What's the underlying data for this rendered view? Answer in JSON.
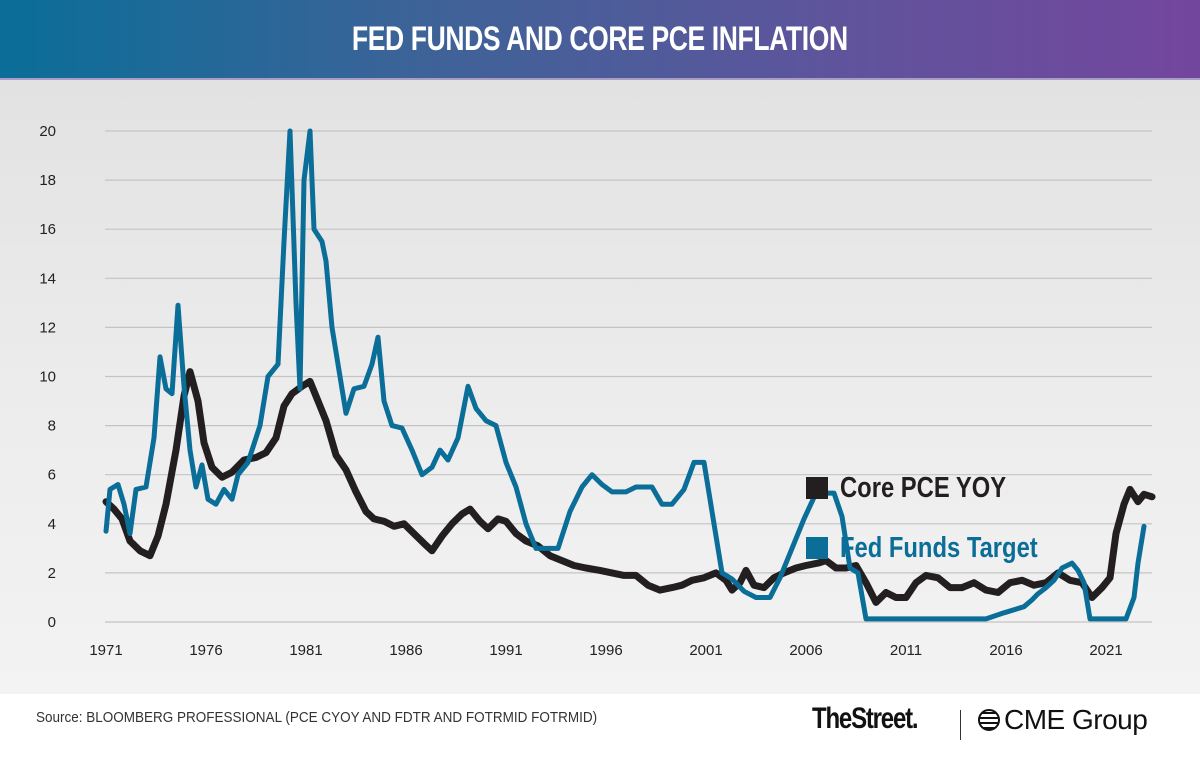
{
  "header": {
    "title": "FED FUNDS AND CORE PCE INFLATION"
  },
  "colors": {
    "core_pce": "#231f20",
    "fed_funds": "#0a6e98",
    "grid": "#c4c4c4"
  },
  "legend": [
    {
      "label": "Core PCE YOY",
      "color": "#231f20"
    },
    {
      "label": "Fed Funds Target",
      "color": "#0a6e98"
    }
  ],
  "footer": {
    "source": "Source: BLOOMBERG PROFESSIONAL (PCE CYOY AND FDTR AND FOTRMID FOTRMID)",
    "logo_thestreet": "TheStreet.",
    "logo_cme": "CME Group"
  },
  "chart_data": {
    "type": "line",
    "title": "FED FUNDS AND CORE PCE INFLATION",
    "xlabel": "",
    "ylabel": "",
    "xlim": [
      1971,
      2023.3
    ],
    "ylim": [
      0,
      20
    ],
    "x_ticks": [
      "1971",
      "1976",
      "1981",
      "1986",
      "1991",
      "1996",
      "2001",
      "2006",
      "2011",
      "2016",
      "2021"
    ],
    "y_ticks": [
      "0",
      "2",
      "4",
      "6",
      "8",
      "10",
      "12",
      "14",
      "16",
      "18",
      "20"
    ],
    "grid": true,
    "legend_position": "center-right",
    "series": [
      {
        "name": "Core PCE YOY",
        "points": [
          [
            1971.0,
            4.9
          ],
          [
            1971.4,
            4.6
          ],
          [
            1971.8,
            4.2
          ],
          [
            1972.2,
            3.3
          ],
          [
            1972.7,
            2.9
          ],
          [
            1973.2,
            2.7
          ],
          [
            1973.6,
            3.5
          ],
          [
            1974.0,
            4.8
          ],
          [
            1974.5,
            7.0
          ],
          [
            1974.9,
            9.2
          ],
          [
            1975.2,
            10.2
          ],
          [
            1975.6,
            9.0
          ],
          [
            1975.9,
            7.3
          ],
          [
            1976.3,
            6.3
          ],
          [
            1976.8,
            5.9
          ],
          [
            1977.3,
            6.1
          ],
          [
            1977.9,
            6.6
          ],
          [
            1978.5,
            6.7
          ],
          [
            1979.0,
            6.9
          ],
          [
            1979.5,
            7.5
          ],
          [
            1979.9,
            8.8
          ],
          [
            1980.3,
            9.3
          ],
          [
            1980.8,
            9.6
          ],
          [
            1981.2,
            9.8
          ],
          [
            1981.6,
            9.0
          ],
          [
            1982.0,
            8.2
          ],
          [
            1982.5,
            6.8
          ],
          [
            1983.0,
            6.2
          ],
          [
            1983.5,
            5.3
          ],
          [
            1984.0,
            4.5
          ],
          [
            1984.4,
            4.2
          ],
          [
            1984.9,
            4.1
          ],
          [
            1985.4,
            3.9
          ],
          [
            1985.9,
            4.0
          ],
          [
            1986.4,
            3.6
          ],
          [
            1986.9,
            3.2
          ],
          [
            1987.3,
            2.9
          ],
          [
            1987.8,
            3.5
          ],
          [
            1988.3,
            4.0
          ],
          [
            1988.8,
            4.4
          ],
          [
            1989.2,
            4.6
          ],
          [
            1989.7,
            4.1
          ],
          [
            1990.1,
            3.8
          ],
          [
            1990.6,
            4.2
          ],
          [
            1991.0,
            4.1
          ],
          [
            1991.5,
            3.6
          ],
          [
            1992.0,
            3.3
          ],
          [
            1992.6,
            3.1
          ],
          [
            1993.2,
            2.7
          ],
          [
            1993.8,
            2.5
          ],
          [
            1994.4,
            2.3
          ],
          [
            1995.0,
            2.2
          ],
          [
            1995.7,
            2.1
          ],
          [
            1996.3,
            2.0
          ],
          [
            1996.9,
            1.9
          ],
          [
            1997.5,
            1.9
          ],
          [
            1998.1,
            1.5
          ],
          [
            1998.7,
            1.3
          ],
          [
            1999.3,
            1.4
          ],
          [
            1999.8,
            1.5
          ],
          [
            2000.3,
            1.7
          ],
          [
            2000.9,
            1.8
          ],
          [
            2001.5,
            2.0
          ],
          [
            2002.0,
            1.7
          ],
          [
            2002.3,
            1.3
          ],
          [
            2002.7,
            1.6
          ],
          [
            2003.0,
            2.1
          ],
          [
            2003.4,
            1.5
          ],
          [
            2003.9,
            1.4
          ],
          [
            2004.4,
            1.8
          ],
          [
            2004.9,
            2.0
          ],
          [
            2005.5,
            2.2
          ],
          [
            2006.0,
            2.3
          ],
          [
            2006.6,
            2.4
          ],
          [
            2007.0,
            2.5
          ],
          [
            2007.5,
            2.2
          ],
          [
            2008.0,
            2.2
          ],
          [
            2008.5,
            2.3
          ],
          [
            2009.0,
            1.6
          ],
          [
            2009.5,
            0.8
          ],
          [
            2010.0,
            1.2
          ],
          [
            2010.5,
            1.0
          ],
          [
            2011.0,
            1.0
          ],
          [
            2011.5,
            1.6
          ],
          [
            2012.0,
            1.9
          ],
          [
            2012.6,
            1.8
          ],
          [
            2013.2,
            1.4
          ],
          [
            2013.8,
            1.4
          ],
          [
            2014.4,
            1.6
          ],
          [
            2015.0,
            1.3
          ],
          [
            2015.6,
            1.2
          ],
          [
            2016.2,
            1.6
          ],
          [
            2016.8,
            1.7
          ],
          [
            2017.4,
            1.5
          ],
          [
            2018.0,
            1.6
          ],
          [
            2018.6,
            2.0
          ],
          [
            2019.2,
            1.7
          ],
          [
            2019.8,
            1.6
          ],
          [
            2020.3,
            1.0
          ],
          [
            2020.8,
            1.4
          ],
          [
            2021.2,
            1.8
          ],
          [
            2021.5,
            3.6
          ],
          [
            2021.9,
            4.8
          ],
          [
            2022.2,
            5.4
          ],
          [
            2022.6,
            4.9
          ],
          [
            2022.9,
            5.2
          ],
          [
            2023.3,
            5.1
          ]
        ]
      },
      {
        "name": "Fed Funds Target",
        "points": [
          [
            1971.0,
            3.7
          ],
          [
            1971.2,
            5.4
          ],
          [
            1971.6,
            5.6
          ],
          [
            1971.9,
            4.8
          ],
          [
            1972.2,
            3.6
          ],
          [
            1972.5,
            5.4
          ],
          [
            1973.0,
            5.5
          ],
          [
            1973.4,
            7.5
          ],
          [
            1973.7,
            10.8
          ],
          [
            1974.0,
            9.5
          ],
          [
            1974.3,
            9.3
          ],
          [
            1974.6,
            12.9
          ],
          [
            1974.9,
            9.6
          ],
          [
            1975.2,
            7.0
          ],
          [
            1975.5,
            5.5
          ],
          [
            1975.8,
            6.4
          ],
          [
            1976.1,
            5.0
          ],
          [
            1976.5,
            4.8
          ],
          [
            1976.9,
            5.4
          ],
          [
            1977.3,
            5.0
          ],
          [
            1977.6,
            6.0
          ],
          [
            1978.1,
            6.5
          ],
          [
            1978.7,
            8.0
          ],
          [
            1979.1,
            10.0
          ],
          [
            1979.6,
            10.5
          ],
          [
            1979.9,
            15.5
          ],
          [
            1980.2,
            20.0
          ],
          [
            1980.5,
            13.0
          ],
          [
            1980.7,
            9.5
          ],
          [
            1980.9,
            18.0
          ],
          [
            1981.2,
            20.0
          ],
          [
            1981.4,
            16.0
          ],
          [
            1981.8,
            15.5
          ],
          [
            1982.0,
            14.7
          ],
          [
            1982.3,
            12.0
          ],
          [
            1982.7,
            10.0
          ],
          [
            1983.0,
            8.5
          ],
          [
            1983.4,
            9.5
          ],
          [
            1983.9,
            9.6
          ],
          [
            1984.3,
            10.5
          ],
          [
            1984.6,
            11.6
          ],
          [
            1984.9,
            9.0
          ],
          [
            1985.3,
            8.0
          ],
          [
            1985.8,
            7.9
          ],
          [
            1986.3,
            7.0
          ],
          [
            1986.8,
            6.0
          ],
          [
            1987.3,
            6.3
          ],
          [
            1987.7,
            7.0
          ],
          [
            1988.1,
            6.6
          ],
          [
            1988.6,
            7.5
          ],
          [
            1989.1,
            9.6
          ],
          [
            1989.5,
            8.7
          ],
          [
            1990.0,
            8.2
          ],
          [
            1990.5,
            8.0
          ],
          [
            1991.0,
            6.5
          ],
          [
            1991.5,
            5.5
          ],
          [
            1992.0,
            4.0
          ],
          [
            1992.5,
            3.0
          ],
          [
            1993.0,
            3.0
          ],
          [
            1993.6,
            3.0
          ],
          [
            1994.2,
            4.5
          ],
          [
            1994.8,
            5.5
          ],
          [
            1995.3,
            6.0
          ],
          [
            1995.8,
            5.6
          ],
          [
            1996.3,
            5.3
          ],
          [
            1997.0,
            5.3
          ],
          [
            1997.5,
            5.5
          ],
          [
            1998.3,
            5.5
          ],
          [
            1998.8,
            4.8
          ],
          [
            1999.3,
            4.8
          ],
          [
            1999.9,
            5.4
          ],
          [
            2000.4,
            6.5
          ],
          [
            2000.9,
            6.5
          ],
          [
            2001.3,
            4.5
          ],
          [
            2001.8,
            2.0
          ],
          [
            2002.3,
            1.75
          ],
          [
            2002.9,
            1.25
          ],
          [
            2003.5,
            1.0
          ],
          [
            2004.2,
            1.0
          ],
          [
            2004.7,
            1.8
          ],
          [
            2005.3,
            3.0
          ],
          [
            2005.9,
            4.2
          ],
          [
            2006.5,
            5.25
          ],
          [
            2007.4,
            5.25
          ],
          [
            2007.8,
            4.3
          ],
          [
            2008.2,
            2.2
          ],
          [
            2008.6,
            2.0
          ],
          [
            2009.0,
            0.125
          ],
          [
            2010.0,
            0.125
          ],
          [
            2012.0,
            0.125
          ],
          [
            2014.0,
            0.125
          ],
          [
            2015.0,
            0.125
          ],
          [
            2015.9,
            0.375
          ],
          [
            2016.9,
            0.625
          ],
          [
            2017.3,
            0.9
          ],
          [
            2017.6,
            1.15
          ],
          [
            2018.0,
            1.4
          ],
          [
            2018.4,
            1.7
          ],
          [
            2018.8,
            2.2
          ],
          [
            2019.3,
            2.4
          ],
          [
            2019.6,
            2.1
          ],
          [
            2019.9,
            1.6
          ],
          [
            2020.2,
            0.125
          ],
          [
            2021.0,
            0.125
          ],
          [
            2022.0,
            0.125
          ],
          [
            2022.4,
            1.0
          ],
          [
            2022.6,
            2.4
          ],
          [
            2022.9,
            3.9
          ]
        ]
      }
    ]
  }
}
